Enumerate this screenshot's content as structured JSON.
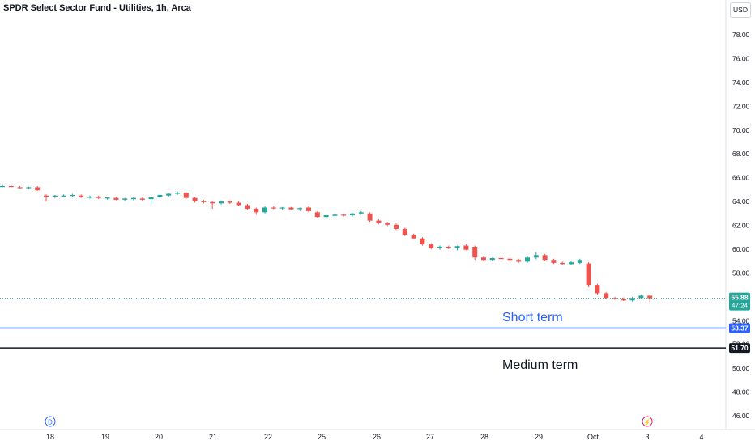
{
  "header": {
    "title": "SPDR Select Sector Fund - Utilities, 1h, Arca",
    "currency": "USD"
  },
  "chart_data": {
    "type": "candlestick",
    "y_ticks": [
      "78.00",
      "76.00",
      "74.00",
      "72.00",
      "70.00",
      "68.00",
      "66.00",
      "64.00",
      "62.00",
      "60.00",
      "58.00",
      "56.00",
      "54.00",
      "52.00",
      "50.00",
      "48.00",
      "46.00"
    ],
    "x_ticks": [
      {
        "label": "18",
        "day": 18
      },
      {
        "label": "19",
        "day": 19
      },
      {
        "label": "20",
        "day": 20
      },
      {
        "label": "21",
        "day": 21
      },
      {
        "label": "22",
        "day": 22
      },
      {
        "label": "25",
        "day": 25
      },
      {
        "label": "26",
        "day": 26
      },
      {
        "label": "27",
        "day": 27
      },
      {
        "label": "28",
        "day": 28
      },
      {
        "label": "29",
        "day": 29
      },
      {
        "label": "Oct",
        "day": 30
      },
      {
        "label": "3",
        "day": 31
      },
      {
        "label": "4",
        "day": 32
      }
    ],
    "ylim": [
      45,
      80
    ],
    "up_color": "#26a69a",
    "down_color": "#ef5350",
    "candles": [
      [
        65.3,
        65.4,
        65.2,
        65.3
      ],
      [
        65.3,
        65.35,
        65.2,
        65.25
      ],
      [
        65.2,
        65.3,
        65.1,
        65.15
      ],
      [
        65.15,
        65.25,
        65.05,
        65.2
      ],
      [
        65.2,
        65.3,
        64.9,
        64.95
      ],
      [
        64.5,
        64.6,
        64.0,
        64.4
      ],
      [
        64.4,
        64.55,
        64.3,
        64.5
      ],
      [
        64.45,
        64.6,
        64.35,
        64.5
      ],
      [
        64.5,
        64.65,
        64.4,
        64.55
      ],
      [
        64.5,
        64.6,
        64.3,
        64.35
      ],
      [
        64.35,
        64.5,
        64.25,
        64.4
      ],
      [
        64.4,
        64.5,
        64.2,
        64.3
      ],
      [
        64.25,
        64.4,
        64.15,
        64.35
      ],
      [
        64.3,
        64.4,
        64.1,
        64.15
      ],
      [
        64.15,
        64.3,
        64.05,
        64.25
      ],
      [
        64.2,
        64.35,
        64.1,
        64.3
      ],
      [
        64.25,
        64.35,
        64.05,
        64.15
      ],
      [
        64.2,
        64.4,
        63.8,
        64.35
      ],
      [
        64.35,
        64.6,
        64.25,
        64.55
      ],
      [
        64.5,
        64.7,
        64.4,
        64.65
      ],
      [
        64.65,
        64.85,
        64.55,
        64.75
      ],
      [
        64.75,
        64.8,
        64.2,
        64.3
      ],
      [
        64.3,
        64.4,
        63.9,
        64.05
      ],
      [
        64.05,
        64.15,
        63.85,
        63.95
      ],
      [
        63.95,
        64.05,
        63.4,
        63.85
      ],
      [
        63.85,
        64.1,
        63.75,
        64.0
      ],
      [
        64.0,
        64.1,
        63.8,
        63.9
      ],
      [
        63.9,
        64.0,
        63.6,
        63.7
      ],
      [
        63.7,
        63.8,
        63.3,
        63.4
      ],
      [
        63.4,
        63.5,
        62.9,
        63.1
      ],
      [
        63.1,
        63.6,
        63.0,
        63.5
      ],
      [
        63.5,
        63.6,
        63.35,
        63.45
      ],
      [
        63.45,
        63.55,
        63.3,
        63.5
      ],
      [
        63.5,
        63.55,
        63.3,
        63.35
      ],
      [
        63.4,
        63.5,
        63.2,
        63.45
      ],
      [
        63.5,
        63.6,
        63.1,
        63.2
      ],
      [
        63.1,
        63.2,
        62.6,
        62.7
      ],
      [
        62.7,
        62.9,
        62.55,
        62.85
      ],
      [
        62.8,
        63.0,
        62.7,
        62.9
      ],
      [
        62.9,
        63.0,
        62.75,
        62.85
      ],
      [
        62.85,
        63.05,
        62.75,
        63.0
      ],
      [
        63.0,
        63.2,
        62.9,
        63.1
      ],
      [
        63.0,
        63.1,
        62.3,
        62.4
      ],
      [
        62.4,
        62.5,
        62.1,
        62.2
      ],
      [
        62.2,
        62.3,
        61.95,
        62.05
      ],
      [
        62.05,
        62.15,
        61.6,
        61.7
      ],
      [
        61.7,
        61.8,
        61.1,
        61.2
      ],
      [
        61.2,
        61.3,
        60.8,
        60.9
      ],
      [
        60.9,
        61.0,
        60.3,
        60.4
      ],
      [
        60.4,
        60.5,
        60.0,
        60.1
      ],
      [
        60.1,
        60.3,
        59.95,
        60.2
      ],
      [
        60.2,
        60.3,
        60.0,
        60.1
      ],
      [
        60.1,
        60.3,
        59.9,
        60.25
      ],
      [
        60.3,
        60.4,
        59.9,
        59.95
      ],
      [
        60.2,
        60.3,
        59.1,
        59.3
      ],
      [
        59.3,
        59.4,
        59.0,
        59.1
      ],
      [
        59.1,
        59.3,
        59.0,
        59.25
      ],
      [
        59.25,
        59.35,
        59.1,
        59.2
      ],
      [
        59.2,
        59.3,
        59.0,
        59.1
      ],
      [
        59.1,
        59.2,
        58.85,
        58.95
      ],
      [
        58.95,
        59.4,
        58.85,
        59.3
      ],
      [
        59.3,
        59.75,
        59.15,
        59.5
      ],
      [
        59.5,
        59.6,
        59.0,
        59.1
      ],
      [
        59.1,
        59.2,
        58.75,
        58.85
      ],
      [
        58.85,
        58.95,
        58.65,
        58.75
      ],
      [
        58.75,
        59.0,
        58.65,
        58.9
      ],
      [
        58.85,
        59.2,
        58.75,
        59.1
      ],
      [
        58.8,
        58.9,
        56.8,
        57.0
      ],
      [
        57.0,
        57.1,
        56.2,
        56.3
      ],
      [
        56.3,
        56.4,
        55.8,
        55.9
      ],
      [
        55.9,
        56.0,
        55.75,
        55.85
      ],
      [
        55.85,
        55.95,
        55.65,
        55.7
      ],
      [
        55.7,
        56.0,
        55.6,
        55.9
      ],
      [
        55.9,
        56.2,
        55.85,
        56.1
      ],
      [
        56.1,
        56.2,
        55.55,
        55.88
      ]
    ],
    "last_price": {
      "price": "55.88",
      "countdown": "47:24"
    },
    "lines": [
      {
        "name": "Short term",
        "price_label": "53.37",
        "value": 53.37,
        "color": "#2962ff"
      },
      {
        "name": "Medium term",
        "price_label": "51.70",
        "value": 51.7,
        "color": "#131722"
      }
    ],
    "markers": [
      {
        "icon": "dividend-marker-icon",
        "text": "D",
        "day": 18,
        "color": "#2962ff"
      },
      {
        "icon": "earnings-lightning-icon",
        "text": "⚡",
        "day": 31,
        "color": "#e91e63"
      }
    ]
  }
}
